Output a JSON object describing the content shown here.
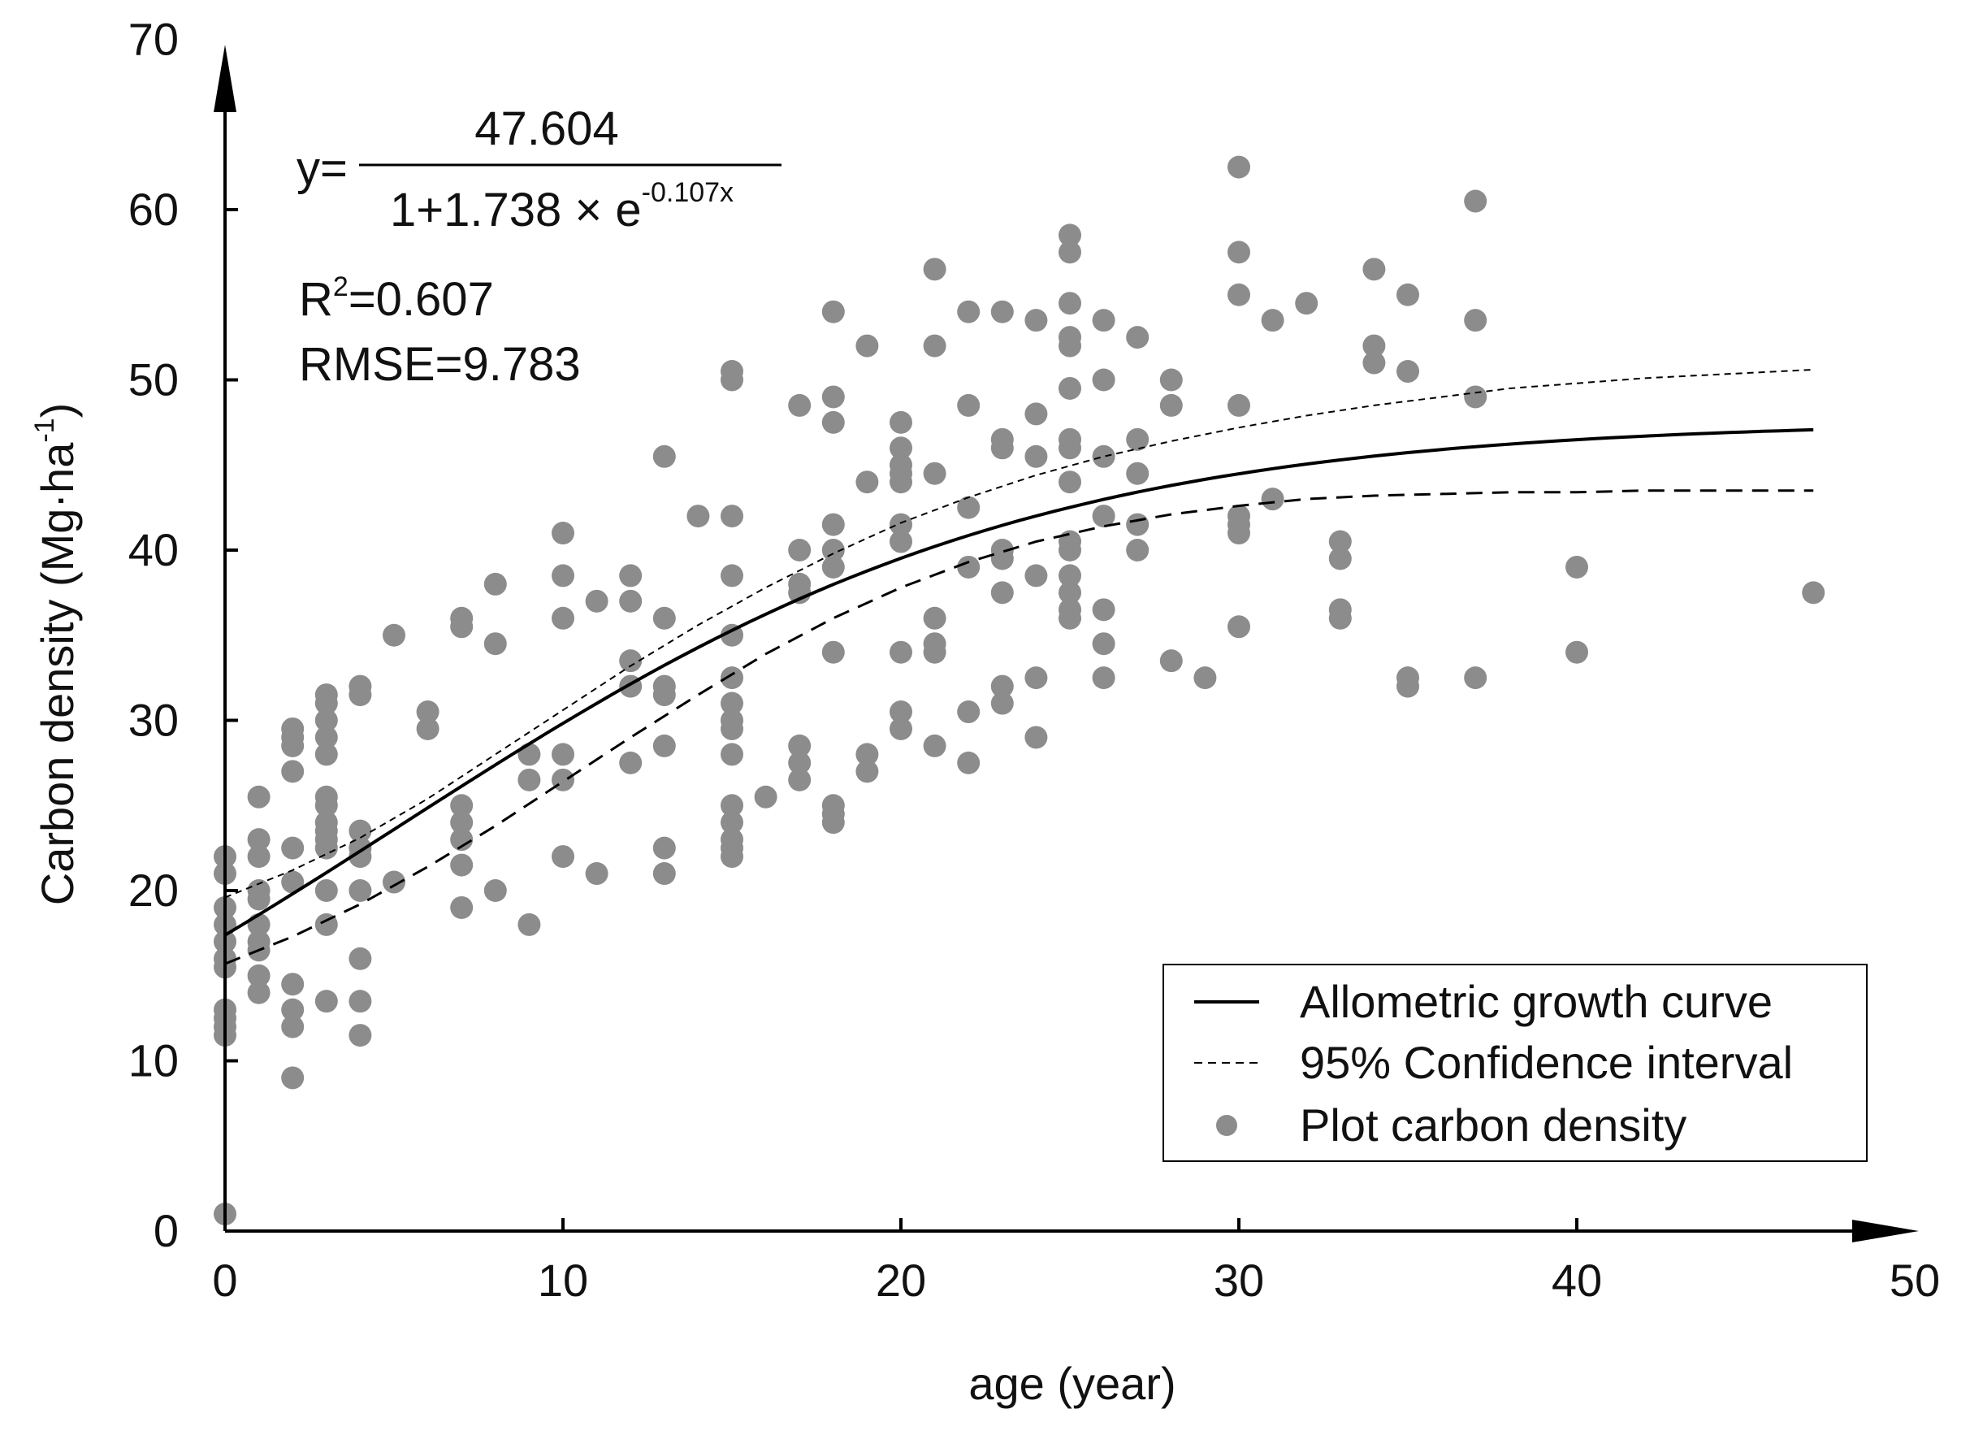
{
  "chart_data": {
    "type": "scatter",
    "xlabel": "age (year)",
    "ylabel": "Carbon density (Mg·ha",
    "ylabel_sup": "-1",
    "ylabel_close": ")",
    "xlim": [
      0,
      50
    ],
    "ylim": [
      0,
      70
    ],
    "xticks": [
      "0",
      "10",
      "20",
      "30",
      "40",
      "50"
    ],
    "yticks": [
      "0",
      "10",
      "20",
      "30",
      "40",
      "50",
      "60",
      "70"
    ],
    "grid": false,
    "equation": {
      "prefix": "y=",
      "numerator": "47.604",
      "denominator_base": "1+1.738 × e",
      "denominator_exp": "-0.107x"
    },
    "stats": {
      "r2_label": "R",
      "r2_sup": "2",
      "r2_value": "=0.607",
      "rmse": "RMSE=9.783"
    },
    "model": {
      "a": 47.604,
      "b": 1.738,
      "k": 0.107
    },
    "ci_upper": [
      [
        0,
        19.6
      ],
      [
        2,
        21.2
      ],
      [
        4,
        23.1
      ],
      [
        6,
        25.4
      ],
      [
        8,
        28.0
      ],
      [
        10,
        30.6
      ],
      [
        12,
        33.2
      ],
      [
        14,
        35.6
      ],
      [
        16,
        37.8
      ],
      [
        18,
        39.8
      ],
      [
        20,
        41.6
      ],
      [
        22,
        43.1
      ],
      [
        24,
        44.4
      ],
      [
        26,
        45.5
      ],
      [
        28,
        46.4
      ],
      [
        30,
        47.2
      ],
      [
        32,
        47.9
      ],
      [
        34,
        48.5
      ],
      [
        36,
        49.0
      ],
      [
        38,
        49.5
      ],
      [
        40,
        49.8
      ],
      [
        42,
        50.1
      ],
      [
        44,
        50.3
      ],
      [
        46,
        50.5
      ],
      [
        47,
        50.6
      ]
    ],
    "ci_lower": [
      [
        0,
        15.7
      ],
      [
        2,
        17.3
      ],
      [
        4,
        19.2
      ],
      [
        6,
        21.4
      ],
      [
        8,
        23.8
      ],
      [
        10,
        26.4
      ],
      [
        12,
        29.0
      ],
      [
        14,
        31.5
      ],
      [
        16,
        33.9
      ],
      [
        18,
        36.0
      ],
      [
        20,
        37.8
      ],
      [
        22,
        39.3
      ],
      [
        24,
        40.5
      ],
      [
        26,
        41.4
      ],
      [
        28,
        42.1
      ],
      [
        30,
        42.6
      ],
      [
        32,
        43.0
      ],
      [
        34,
        43.2
      ],
      [
        36,
        43.3
      ],
      [
        38,
        43.4
      ],
      [
        40,
        43.4
      ],
      [
        42,
        43.5
      ],
      [
        47,
        43.5
      ]
    ],
    "legend": {
      "position": "bottom-right",
      "items": [
        {
          "label": "Allometric growth curve",
          "kind": "solid"
        },
        {
          "label": "95% Confidence interval",
          "kind": "dashed"
        },
        {
          "label": "Plot carbon density",
          "kind": "dot"
        }
      ]
    },
    "colors": {
      "curve": "#000000",
      "points": "#8c8c8c",
      "axis": "#000000"
    },
    "points": [
      [
        0,
        22
      ],
      [
        0,
        21
      ],
      [
        0,
        19
      ],
      [
        0,
        18
      ],
      [
        0,
        17
      ],
      [
        0,
        16
      ],
      [
        0,
        15.5
      ],
      [
        0,
        13
      ],
      [
        0,
        12.5
      ],
      [
        0,
        12
      ],
      [
        0,
        11.5
      ],
      [
        0,
        1
      ],
      [
        1,
        25.5
      ],
      [
        1,
        23
      ],
      [
        1,
        22
      ],
      [
        1,
        20
      ],
      [
        1,
        19.5
      ],
      [
        1,
        18
      ],
      [
        1,
        17
      ],
      [
        1,
        16.5
      ],
      [
        1,
        15
      ],
      [
        1,
        14
      ],
      [
        2,
        29.5
      ],
      [
        2,
        29
      ],
      [
        2,
        28.5
      ],
      [
        2,
        27
      ],
      [
        2,
        22.5
      ],
      [
        2,
        20.5
      ],
      [
        2,
        14.5
      ],
      [
        2,
        13
      ],
      [
        2,
        12
      ],
      [
        2,
        9
      ],
      [
        3,
        31.5
      ],
      [
        3,
        31
      ],
      [
        3,
        30
      ],
      [
        3,
        29
      ],
      [
        3,
        28
      ],
      [
        3,
        25.5
      ],
      [
        3,
        25
      ],
      [
        3,
        24
      ],
      [
        3,
        23.5
      ],
      [
        3,
        23
      ],
      [
        3,
        22.5
      ],
      [
        3,
        20
      ],
      [
        3,
        18
      ],
      [
        3,
        13.5
      ],
      [
        4,
        32
      ],
      [
        4,
        31.5
      ],
      [
        4,
        23.5
      ],
      [
        4,
        22.5
      ],
      [
        4,
        22
      ],
      [
        4,
        20
      ],
      [
        4,
        16
      ],
      [
        4,
        13.5
      ],
      [
        4,
        11.5
      ],
      [
        5,
        35
      ],
      [
        5,
        20.5
      ],
      [
        6,
        30.5
      ],
      [
        6,
        29.5
      ],
      [
        7,
        36
      ],
      [
        7,
        35.5
      ],
      [
        7,
        25
      ],
      [
        7,
        24
      ],
      [
        7,
        23
      ],
      [
        7,
        21.5
      ],
      [
        7,
        19
      ],
      [
        8,
        38
      ],
      [
        8,
        34.5
      ],
      [
        8,
        20
      ],
      [
        9,
        28
      ],
      [
        9,
        26.5
      ],
      [
        9,
        18
      ],
      [
        10,
        41
      ],
      [
        10,
        38.5
      ],
      [
        10,
        36
      ],
      [
        10,
        28
      ],
      [
        10,
        26.5
      ],
      [
        10,
        22
      ],
      [
        11,
        37
      ],
      [
        11,
        21
      ],
      [
        12,
        38.5
      ],
      [
        12,
        37
      ],
      [
        12,
        33.5
      ],
      [
        12,
        32
      ],
      [
        12,
        27.5
      ],
      [
        13,
        45.5
      ],
      [
        13,
        36
      ],
      [
        13,
        32
      ],
      [
        13,
        31.5
      ],
      [
        13,
        28.5
      ],
      [
        13,
        22.5
      ],
      [
        13,
        21
      ],
      [
        14,
        42
      ],
      [
        15,
        50.5
      ],
      [
        15,
        50
      ],
      [
        15,
        42
      ],
      [
        15,
        38.5
      ],
      [
        15,
        35
      ],
      [
        15,
        32.5
      ],
      [
        15,
        31
      ],
      [
        15,
        30
      ],
      [
        15,
        29.5
      ],
      [
        15,
        28
      ],
      [
        15,
        25
      ],
      [
        15,
        24
      ],
      [
        15,
        23
      ],
      [
        15,
        22.5
      ],
      [
        15,
        22
      ],
      [
        16,
        25.5
      ],
      [
        17,
        48.5
      ],
      [
        17,
        40
      ],
      [
        17,
        38
      ],
      [
        17,
        37.5
      ],
      [
        17,
        28.5
      ],
      [
        17,
        27.5
      ],
      [
        17,
        26.5
      ],
      [
        18,
        54
      ],
      [
        18,
        49
      ],
      [
        18,
        47.5
      ],
      [
        18,
        41.5
      ],
      [
        18,
        40
      ],
      [
        18,
        39
      ],
      [
        18,
        34
      ],
      [
        18,
        25
      ],
      [
        18,
        24.5
      ],
      [
        18,
        24
      ],
      [
        19,
        52
      ],
      [
        19,
        44
      ],
      [
        19,
        28
      ],
      [
        19,
        27
      ],
      [
        20,
        47.5
      ],
      [
        20,
        46
      ],
      [
        20,
        45
      ],
      [
        20,
        44.5
      ],
      [
        20,
        44
      ],
      [
        20,
        41.5
      ],
      [
        20,
        40.5
      ],
      [
        20,
        34
      ],
      [
        20,
        30.5
      ],
      [
        20,
        29.5
      ],
      [
        21,
        56.5
      ],
      [
        21,
        52
      ],
      [
        21,
        44.5
      ],
      [
        21,
        36
      ],
      [
        21,
        34.5
      ],
      [
        21,
        34
      ],
      [
        21,
        28.5
      ],
      [
        22,
        54
      ],
      [
        22,
        48.5
      ],
      [
        22,
        42.5
      ],
      [
        22,
        39
      ],
      [
        22,
        30.5
      ],
      [
        22,
        27.5
      ],
      [
        23,
        54
      ],
      [
        23,
        46.5
      ],
      [
        23,
        46
      ],
      [
        23,
        40
      ],
      [
        23,
        39.5
      ],
      [
        23,
        37.5
      ],
      [
        23,
        32
      ],
      [
        23,
        31
      ],
      [
        24,
        53.5
      ],
      [
        24,
        48
      ],
      [
        24,
        45.5
      ],
      [
        24,
        38.5
      ],
      [
        24,
        32.5
      ],
      [
        24,
        29
      ],
      [
        25,
        58.5
      ],
      [
        25,
        57.5
      ],
      [
        25,
        54.5
      ],
      [
        25,
        52.5
      ],
      [
        25,
        52
      ],
      [
        25,
        49.5
      ],
      [
        25,
        46.5
      ],
      [
        25,
        46
      ],
      [
        25,
        44
      ],
      [
        25,
        40.5
      ],
      [
        25,
        40
      ],
      [
        25,
        38.5
      ],
      [
        25,
        37.5
      ],
      [
        25,
        36.5
      ],
      [
        25,
        36
      ],
      [
        26,
        53.5
      ],
      [
        26,
        50
      ],
      [
        26,
        45.5
      ],
      [
        26,
        42
      ],
      [
        26,
        36.5
      ],
      [
        26,
        34.5
      ],
      [
        26,
        32.5
      ],
      [
        27,
        52.5
      ],
      [
        27,
        46.5
      ],
      [
        27,
        44.5
      ],
      [
        27,
        41.5
      ],
      [
        27,
        40
      ],
      [
        28,
        50
      ],
      [
        28,
        48.5
      ],
      [
        28,
        33.5
      ],
      [
        29,
        32.5
      ],
      [
        30,
        62.5
      ],
      [
        30,
        57.5
      ],
      [
        30,
        55
      ],
      [
        30,
        48.5
      ],
      [
        30,
        42
      ],
      [
        30,
        41.5
      ],
      [
        30,
        41
      ],
      [
        30,
        35.5
      ],
      [
        31,
        53.5
      ],
      [
        31,
        43
      ],
      [
        32,
        54.5
      ],
      [
        33,
        40.5
      ],
      [
        33,
        39.5
      ],
      [
        33,
        36.5
      ],
      [
        33,
        36
      ],
      [
        34,
        56.5
      ],
      [
        34,
        52
      ],
      [
        34,
        51
      ],
      [
        35,
        55
      ],
      [
        35,
        50.5
      ],
      [
        35,
        32.5
      ],
      [
        35,
        32
      ],
      [
        37,
        60.5
      ],
      [
        37,
        53.5
      ],
      [
        37,
        49
      ],
      [
        37,
        32.5
      ],
      [
        40,
        39
      ],
      [
        40,
        34
      ],
      [
        47,
        37.5
      ]
    ]
  }
}
